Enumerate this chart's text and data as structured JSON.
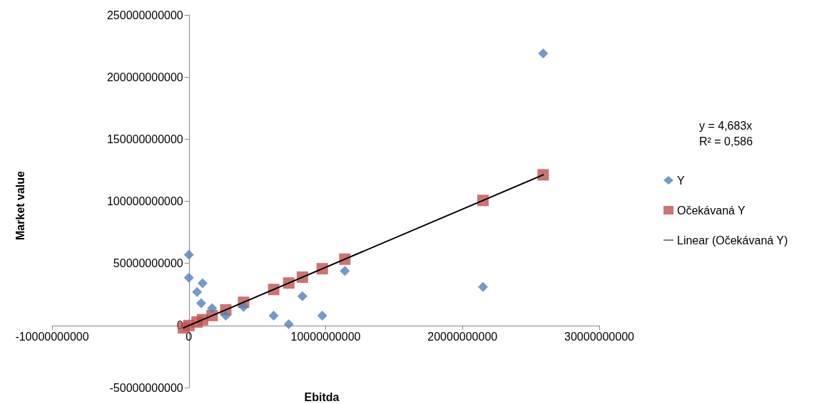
{
  "chart_data": {
    "type": "scatter",
    "xlabel": "Ebitda",
    "ylabel": "Market value",
    "xlim": [
      -10000000000,
      30000000000
    ],
    "xticks": [
      -10000000000,
      0,
      10000000000,
      20000000000,
      30000000000
    ],
    "ylim": [
      -50000000000,
      250000000000
    ],
    "yticks": [
      -50000000000,
      0,
      50000000000,
      100000000000,
      150000000000,
      200000000000,
      250000000000
    ],
    "grid": false,
    "legend": "right",
    "annotations": [
      "y = 4,683x",
      "R² = 0,586"
    ],
    "series": [
      {
        "name": "Y",
        "marker": "diamond",
        "color": "#4f81bd",
        "x": [
          0,
          0,
          1000000000,
          600000000,
          900000000,
          1700000000,
          2700000000,
          4000000000,
          6200000000,
          7300000000,
          8300000000,
          9750000000,
          11400000000,
          21500000000,
          25900000000
        ],
        "values": [
          57000000000,
          38500000000,
          34000000000,
          27000000000,
          18000000000,
          14000000000,
          8000000000,
          15000000000,
          8000000000,
          1000000000,
          23500000000,
          8000000000,
          44000000000,
          31000000000,
          219000000000
        ]
      },
      {
        "name": "Očekávaná Y",
        "marker": "square",
        "color": "#c0504d",
        "x": [
          -400000000,
          0,
          600000000,
          1000000000,
          1700000000,
          2700000000,
          4000000000,
          6200000000,
          7300000000,
          8300000000,
          9750000000,
          11400000000,
          21500000000,
          25900000000
        ],
        "values": [
          -1900000000,
          0,
          2800000000,
          4700000000,
          8000000000,
          12600000000,
          18700000000,
          29000000000,
          34200000000,
          38900000000,
          45700000000,
          53400000000,
          100700000000,
          121300000000
        ]
      },
      {
        "name": "Linear (Očekávaná Y)",
        "type": "line",
        "marker": "none",
        "line_style": "solid",
        "color": "#000000",
        "x": [
          -400000000,
          25900000000
        ],
        "values": [
          -1900000000,
          121300000000
        ]
      }
    ]
  }
}
